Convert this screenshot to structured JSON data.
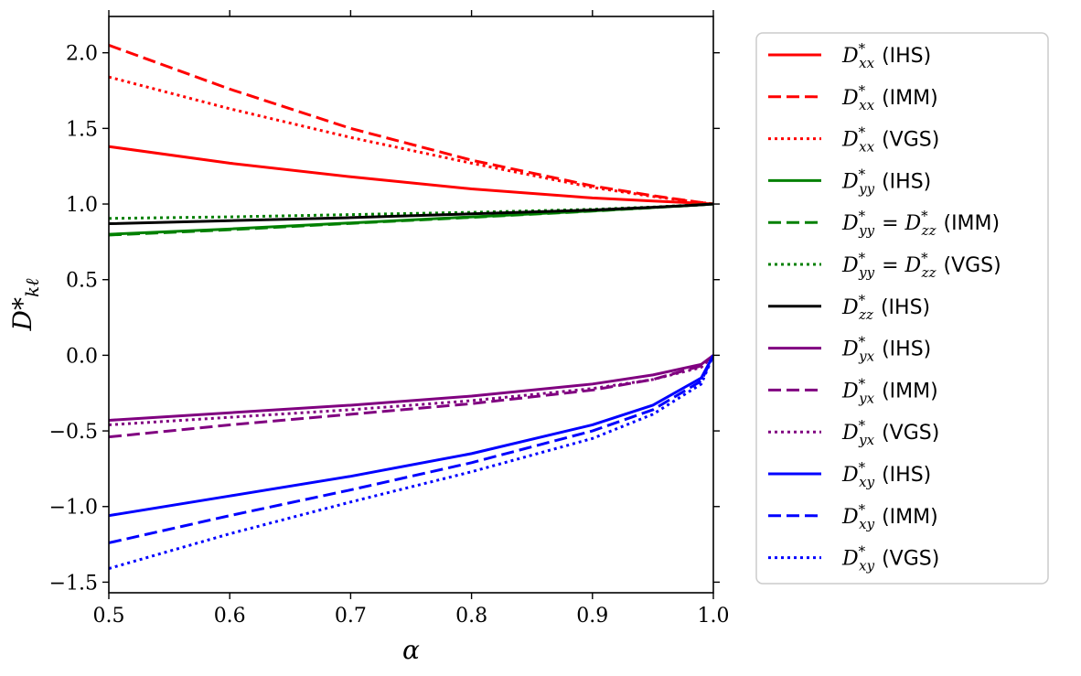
{
  "chart_data": {
    "type": "line",
    "xlabel": "α",
    "ylabel": "D*",
    "ylabel_sub": "kℓ",
    "xlim": [
      0.5,
      1.0
    ],
    "ylim": [
      -1.57,
      2.24
    ],
    "xticks": [
      0.5,
      0.6,
      0.7,
      0.8,
      0.9,
      1.0
    ],
    "xtick_labels": [
      "0.5",
      "0.6",
      "0.7",
      "0.8",
      "0.9",
      "1.0"
    ],
    "yticks": [
      2.0,
      1.5,
      1.0,
      0.5,
      0.0,
      -0.5,
      -1.0,
      -1.5
    ],
    "ytick_labels": [
      "2.0",
      "1.5",
      "1.0",
      "0.5",
      "0.0",
      "−0.5",
      "−1.0",
      "−1.5"
    ],
    "legend_position": "outside-right",
    "x": [
      0.5,
      0.6,
      0.7,
      0.8,
      0.9,
      0.95,
      0.99,
      1.0
    ],
    "series": [
      {
        "name": "D*xx (IHS)",
        "sub": "xx",
        "tag": "(IHS)",
        "color": "#ff0000",
        "dash": "solid",
        "values": [
          1.38,
          1.27,
          1.18,
          1.1,
          1.04,
          1.02,
          1.005,
          1.0
        ]
      },
      {
        "name": "D*xx (IMM)",
        "sub": "xx",
        "tag": "(IMM)",
        "color": "#ff0000",
        "dash": "dashed",
        "values": [
          2.05,
          1.76,
          1.5,
          1.29,
          1.12,
          1.055,
          1.01,
          1.0
        ]
      },
      {
        "name": "D*xx (VGS)",
        "sub": "xx",
        "tag": "(VGS)",
        "color": "#ff0000",
        "dash": "dotted",
        "values": [
          1.84,
          1.63,
          1.44,
          1.27,
          1.11,
          1.05,
          1.01,
          1.0
        ]
      },
      {
        "name": "D*yy (IHS)",
        "sub": "yy",
        "tag": "(IHS)",
        "color": "#008000",
        "dash": "solid",
        "values": [
          0.8,
          0.835,
          0.875,
          0.915,
          0.955,
          0.977,
          0.995,
          1.0
        ]
      },
      {
        "name": "D*yy = D*zz (IMM)",
        "sub": "yy",
        "sub2": "zz",
        "tag": "(IMM)",
        "color": "#008000",
        "dash": "dashed",
        "values": [
          0.795,
          0.83,
          0.872,
          0.912,
          0.953,
          0.976,
          0.995,
          1.0
        ]
      },
      {
        "name": "D*yy = D*zz (VGS)",
        "sub": "yy",
        "sub2": "zz",
        "tag": "(VGS)",
        "color": "#008000",
        "dash": "dotted",
        "values": [
          0.905,
          0.915,
          0.93,
          0.945,
          0.965,
          0.98,
          0.996,
          1.0
        ]
      },
      {
        "name": "D*zz (IHS)",
        "sub": "zz",
        "tag": "(IHS)",
        "color": "#000000",
        "dash": "solid",
        "values": [
          0.87,
          0.89,
          0.91,
          0.935,
          0.96,
          0.978,
          0.995,
          1.0
        ]
      },
      {
        "name": "D*yx (IHS)",
        "sub": "yx",
        "tag": "(IHS)",
        "color": "#800080",
        "dash": "solid",
        "values": [
          -0.43,
          -0.38,
          -0.33,
          -0.27,
          -0.19,
          -0.13,
          -0.06,
          0.0
        ]
      },
      {
        "name": "D*yx (IMM)",
        "sub": "yx",
        "tag": "(IMM)",
        "color": "#800080",
        "dash": "dashed",
        "values": [
          -0.54,
          -0.46,
          -0.39,
          -0.32,
          -0.23,
          -0.16,
          -0.07,
          0.0
        ]
      },
      {
        "name": "D*yx (VGS)",
        "sub": "yx",
        "tag": "(VGS)",
        "color": "#800080",
        "dash": "dotted",
        "values": [
          -0.46,
          -0.41,
          -0.36,
          -0.3,
          -0.22,
          -0.16,
          -0.08,
          0.0
        ]
      },
      {
        "name": "D*xy (IHS)",
        "sub": "xy",
        "tag": "(IHS)",
        "color": "#0000ff",
        "dash": "solid",
        "values": [
          -1.06,
          -0.93,
          -0.8,
          -0.65,
          -0.46,
          -0.33,
          -0.15,
          0.0
        ]
      },
      {
        "name": "D*xy (IMM)",
        "sub": "xy",
        "tag": "(IMM)",
        "color": "#0000ff",
        "dash": "dashed",
        "values": [
          -1.24,
          -1.06,
          -0.89,
          -0.71,
          -0.5,
          -0.36,
          -0.17,
          0.0
        ]
      },
      {
        "name": "D*xy (VGS)",
        "sub": "xy",
        "tag": "(VGS)",
        "color": "#0000ff",
        "dash": "dotted",
        "values": [
          -1.41,
          -1.18,
          -0.97,
          -0.77,
          -0.55,
          -0.39,
          -0.19,
          0.0
        ]
      }
    ]
  }
}
